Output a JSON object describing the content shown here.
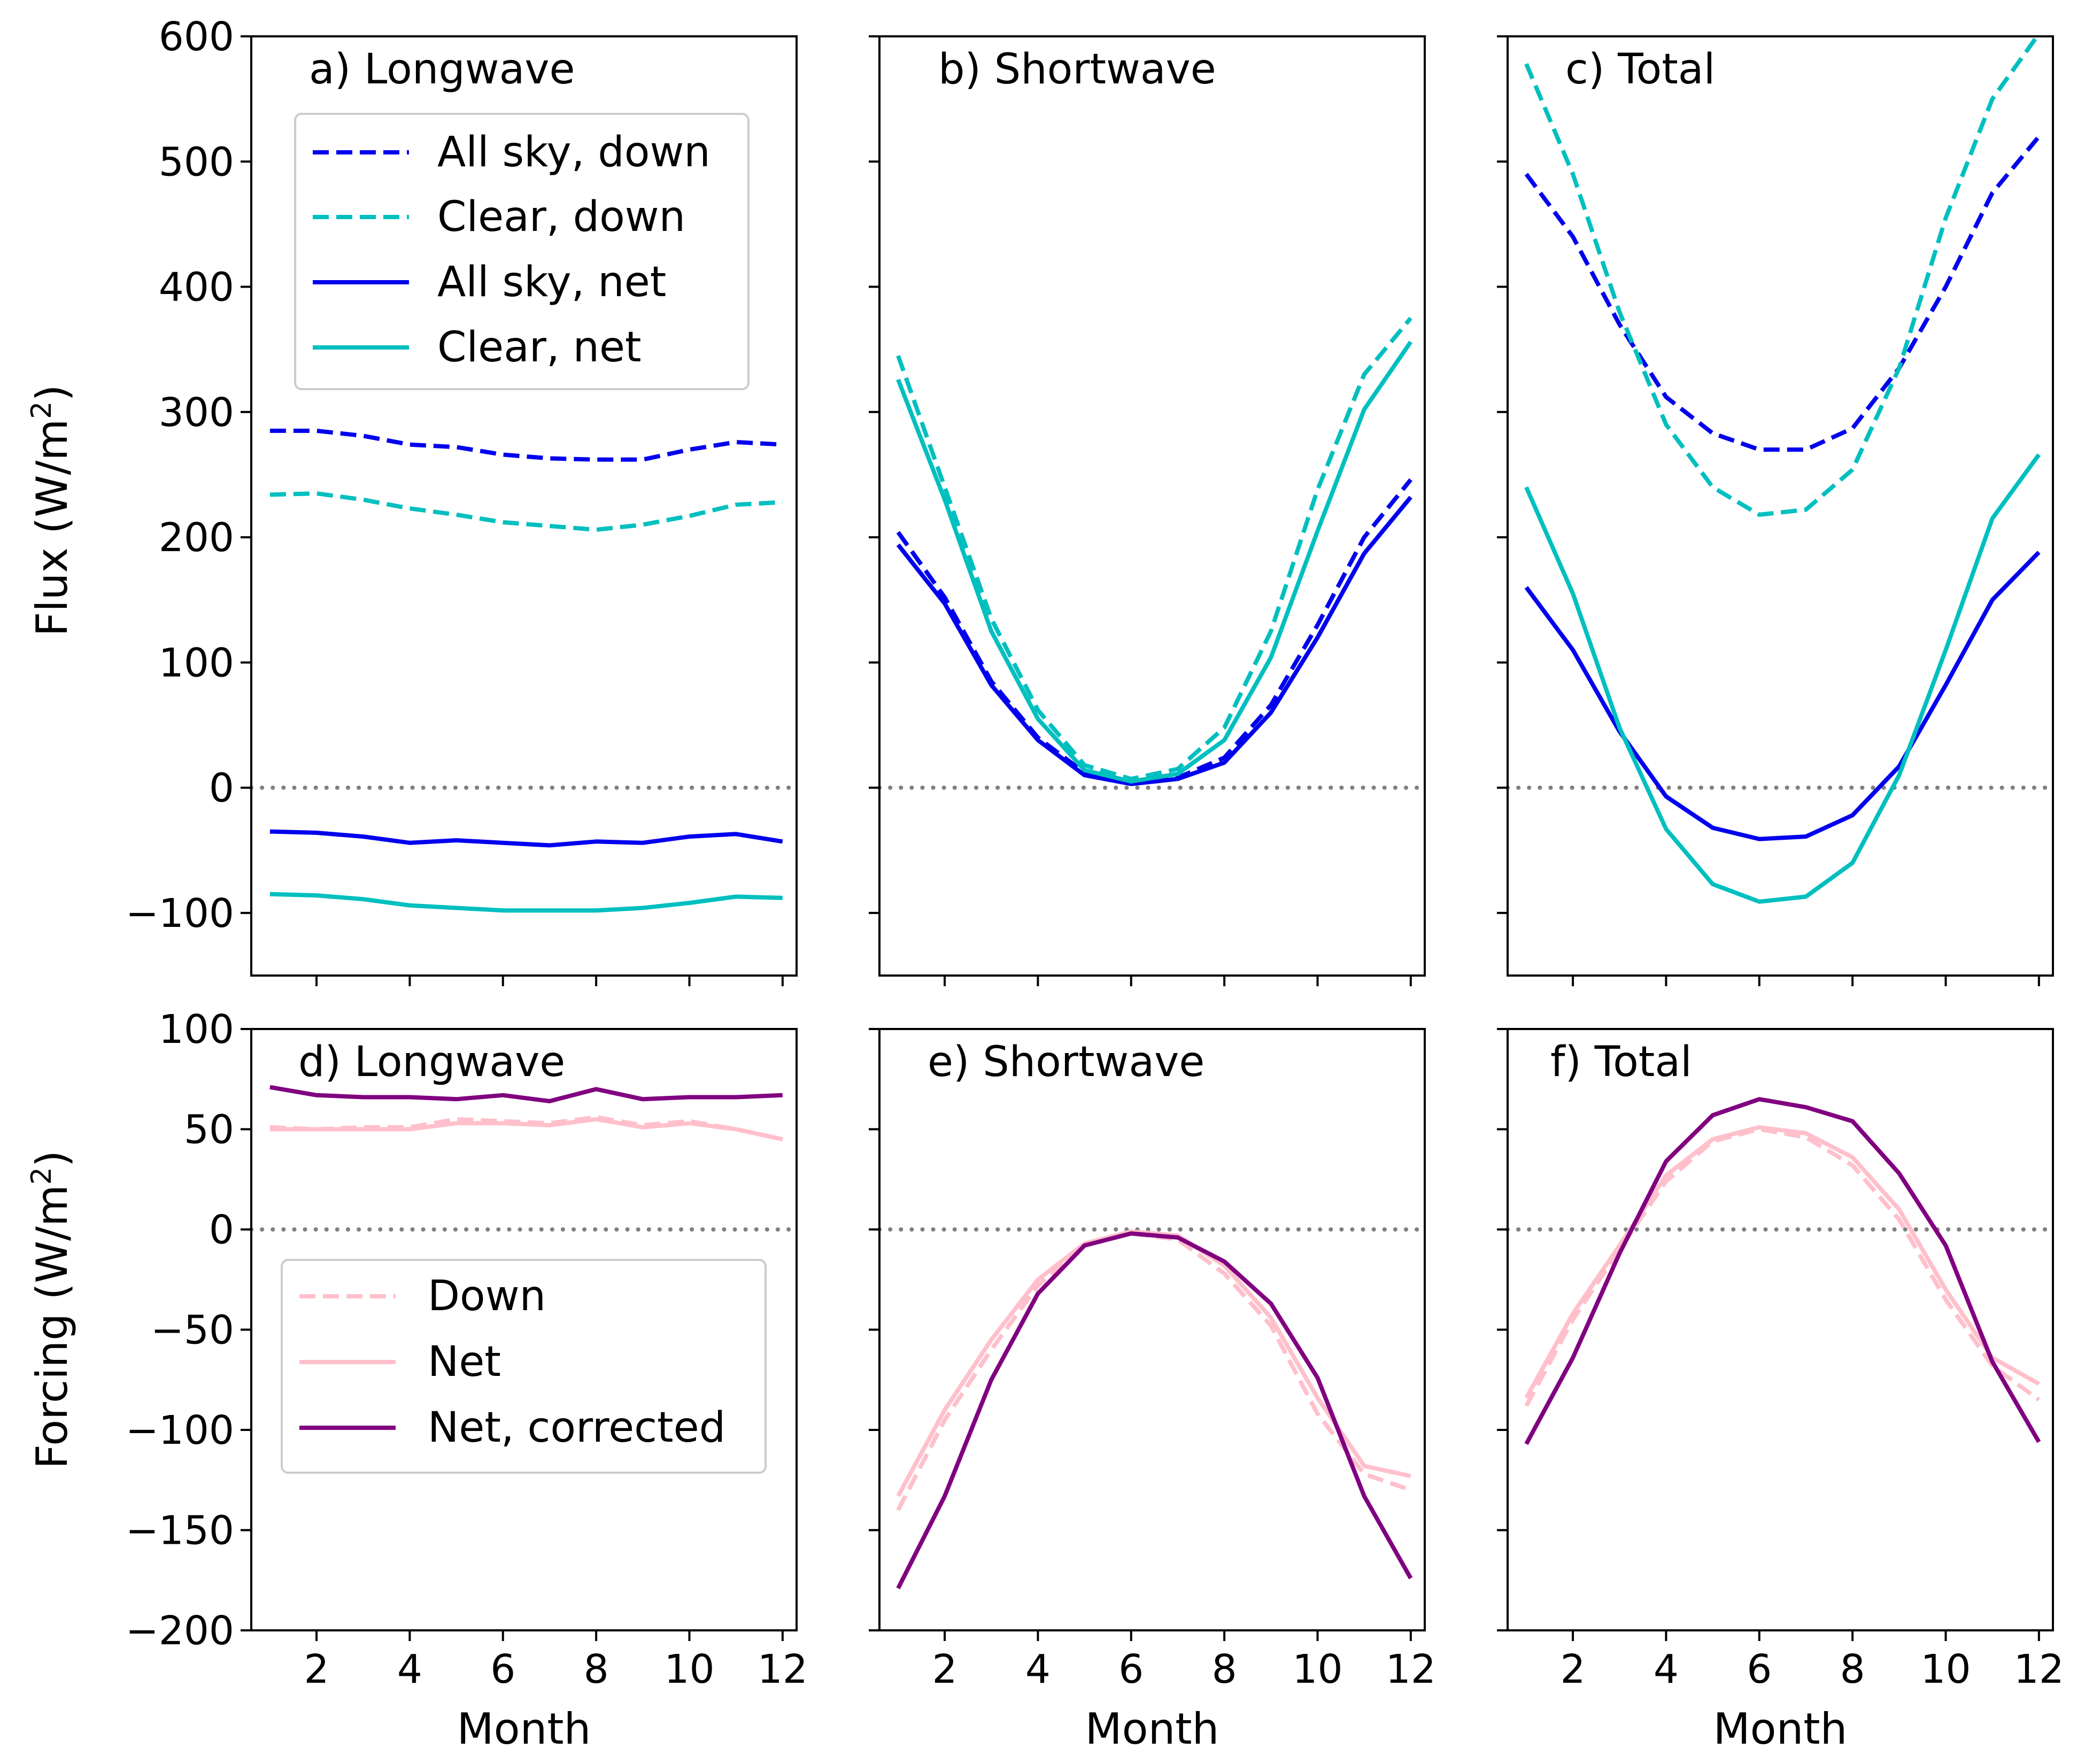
{
  "figure": {
    "xlabel": "Month"
  },
  "rows": [
    {
      "ylabel": "Flux (W/m",
      "ylabel_sup": "2",
      "ylabel_end": ")"
    },
    {
      "ylabel": "Forcing (W/m",
      "ylabel_sup": "2",
      "ylabel_end": ")"
    }
  ],
  "legends": {
    "top": [
      "All sky, down",
      "Clear, down",
      "All sky, net",
      "Clear, net"
    ],
    "bottom": [
      "Down",
      "Net",
      "Net, corrected"
    ]
  },
  "chart_data": [
    {
      "type": "line",
      "title": "a) Longwave",
      "xlabel": "",
      "ylabel": "Flux (W/m2)",
      "xlim": [
        0.6,
        12.3
      ],
      "ylim": [
        -150,
        600
      ],
      "xticks": [
        2,
        4,
        6,
        8,
        10,
        12
      ],
      "yticks": [
        -100,
        0,
        100,
        200,
        300,
        400,
        500,
        600
      ],
      "x": [
        1,
        2,
        3,
        4,
        5,
        6,
        7,
        8,
        9,
        10,
        11,
        12
      ],
      "reference_line": 0,
      "legend_position": "upper-left",
      "series": [
        {
          "name": "All sky, down",
          "color": "#0000ee",
          "style": "dashed",
          "values": [
            285,
            285,
            281,
            274,
            272,
            266,
            263,
            262,
            262,
            270,
            276,
            274
          ]
        },
        {
          "name": "Clear, down",
          "color": "#00bfbf",
          "style": "dashed",
          "values": [
            234,
            235,
            230,
            223,
            218,
            212,
            209,
            206,
            210,
            217,
            226,
            228
          ]
        },
        {
          "name": "All sky, net",
          "color": "#0000ee",
          "style": "solid",
          "values": [
            -35,
            -36,
            -39,
            -44,
            -42,
            -44,
            -46,
            -43,
            -44,
            -39,
            -37,
            -43
          ]
        },
        {
          "name": "Clear, net",
          "color": "#00bfbf",
          "style": "solid",
          "values": [
            -85,
            -86,
            -89,
            -94,
            -96,
            -98,
            -98,
            -98,
            -96,
            -92,
            -87,
            -88
          ]
        }
      ]
    },
    {
      "type": "line",
      "title": "b) Shortwave",
      "xlabel": "",
      "ylabel": "",
      "xlim": [
        0.6,
        12.3
      ],
      "ylim": [
        -150,
        600
      ],
      "xticks": [
        2,
        4,
        6,
        8,
        10,
        12
      ],
      "yticks": [
        -100,
        0,
        100,
        200,
        300,
        400,
        500,
        600
      ],
      "x": [
        1,
        2,
        3,
        4,
        5,
        6,
        7,
        8,
        9,
        10,
        11,
        12
      ],
      "reference_line": 0,
      "series": [
        {
          "name": "All sky, down",
          "color": "#0000ee",
          "style": "dashed",
          "values": [
            204,
            152,
            85,
            40,
            12,
            4,
            8,
            24,
            66,
            130,
            200,
            246
          ]
        },
        {
          "name": "Clear, down",
          "color": "#00bfbf",
          "style": "dashed",
          "values": [
            345,
            240,
            135,
            62,
            18,
            7,
            15,
            48,
            125,
            238,
            330,
            375
          ]
        },
        {
          "name": "All sky, net",
          "color": "#0000ee",
          "style": "solid",
          "values": [
            194,
            147,
            82,
            38,
            10,
            3,
            7,
            20,
            60,
            120,
            187,
            232
          ]
        },
        {
          "name": "Clear, net",
          "color": "#00bfbf",
          "style": "solid",
          "values": [
            326,
            230,
            125,
            55,
            14,
            5,
            11,
            38,
            104,
            205,
            302,
            356
          ]
        }
      ]
    },
    {
      "type": "line",
      "title": "c) Total",
      "xlabel": "",
      "ylabel": "",
      "xlim": [
        0.6,
        12.3
      ],
      "ylim": [
        -150,
        600
      ],
      "xticks": [
        2,
        4,
        6,
        8,
        10,
        12
      ],
      "yticks": [
        -100,
        0,
        100,
        200,
        300,
        400,
        500,
        600
      ],
      "x": [
        1,
        2,
        3,
        4,
        5,
        6,
        7,
        8,
        9,
        10,
        11,
        12
      ],
      "reference_line": 0,
      "series": [
        {
          "name": "All sky, down",
          "color": "#0000ee",
          "style": "dashed",
          "values": [
            490,
            440,
            370,
            312,
            283,
            270,
            270,
            287,
            335,
            400,
            475,
            520
          ]
        },
        {
          "name": "Clear, down",
          "color": "#00bfbf",
          "style": "dashed",
          "values": [
            578,
            490,
            380,
            290,
            240,
            218,
            222,
            254,
            335,
            455,
            550,
            602
          ]
        },
        {
          "name": "All sky, net",
          "color": "#0000ee",
          "style": "solid",
          "values": [
            160,
            110,
            45,
            -7,
            -32,
            -41,
            -39,
            -22,
            17,
            82,
            150,
            188
          ]
        },
        {
          "name": "Clear, net",
          "color": "#00bfbf",
          "style": "solid",
          "values": [
            240,
            155,
            48,
            -33,
            -77,
            -91,
            -87,
            -60,
            10,
            110,
            215,
            266
          ]
        }
      ]
    },
    {
      "type": "line",
      "title": "d) Longwave",
      "xlabel": "Month",
      "ylabel": "Forcing (W/m2)",
      "xlim": [
        0.6,
        12.3
      ],
      "ylim": [
        -200,
        100
      ],
      "xticks": [
        2,
        4,
        6,
        8,
        10,
        12
      ],
      "yticks": [
        -200,
        -150,
        -100,
        -50,
        0,
        50,
        100
      ],
      "x": [
        1,
        2,
        3,
        4,
        5,
        6,
        7,
        8,
        9,
        10,
        11,
        12
      ],
      "reference_line": 0,
      "legend_position": "lower-left",
      "series": [
        {
          "name": "Down",
          "color": "#ffc0cb",
          "style": "dashed",
          "values": [
            51,
            50,
            51,
            51,
            55,
            54,
            53,
            56,
            52,
            54,
            50,
            45
          ]
        },
        {
          "name": "Net",
          "color": "#ffc0cb",
          "style": "solid",
          "values": [
            50,
            50,
            50,
            50,
            53,
            53,
            52,
            55,
            51,
            53,
            50,
            45
          ]
        },
        {
          "name": "Net, corrected",
          "color": "#800080",
          "style": "solid",
          "values": [
            71,
            67,
            66,
            66,
            65,
            67,
            64,
            70,
            65,
            66,
            66,
            67
          ]
        }
      ]
    },
    {
      "type": "line",
      "title": "e) Shortwave",
      "xlabel": "Month",
      "ylabel": "",
      "xlim": [
        0.6,
        12.3
      ],
      "ylim": [
        -200,
        100
      ],
      "xticks": [
        2,
        4,
        6,
        8,
        10,
        12
      ],
      "yticks": [
        -200,
        -150,
        -100,
        -50,
        0,
        50,
        100
      ],
      "x": [
        1,
        2,
        3,
        4,
        5,
        6,
        7,
        8,
        9,
        10,
        11,
        12
      ],
      "reference_line": 0,
      "series": [
        {
          "name": "Down",
          "color": "#ffc0cb",
          "style": "dashed",
          "values": [
            -140,
            -95,
            -60,
            -28,
            -8,
            -2,
            -5,
            -22,
            -48,
            -92,
            -122,
            -130
          ]
        },
        {
          "name": "Net",
          "color": "#ffc0cb",
          "style": "solid",
          "values": [
            -133,
            -90,
            -55,
            -25,
            -7,
            -1,
            -3,
            -18,
            -44,
            -84,
            -118,
            -123
          ]
        },
        {
          "name": "Net, corrected",
          "color": "#800080",
          "style": "solid",
          "values": [
            -179,
            -133,
            -75,
            -32,
            -8,
            -2,
            -4,
            -16,
            -37,
            -74,
            -133,
            -174
          ]
        }
      ]
    },
    {
      "type": "line",
      "title": "f) Total",
      "xlabel": "Month",
      "ylabel": "",
      "xlim": [
        0.6,
        12.3
      ],
      "ylim": [
        -200,
        100
      ],
      "xticks": [
        2,
        4,
        6,
        8,
        10,
        12
      ],
      "yticks": [
        -200,
        -150,
        -100,
        -50,
        0,
        50,
        100
      ],
      "x": [
        1,
        2,
        3,
        4,
        5,
        6,
        7,
        8,
        9,
        10,
        11,
        12
      ],
      "reference_line": 0,
      "series": [
        {
          "name": "Down",
          "color": "#ffc0cb",
          "style": "dashed",
          "values": [
            -88,
            -45,
            -10,
            24,
            44,
            50,
            46,
            32,
            5,
            -35,
            -68,
            -85
          ]
        },
        {
          "name": "Net",
          "color": "#ffc0cb",
          "style": "solid",
          "values": [
            -84,
            -42,
            -8,
            27,
            45,
            51,
            48,
            36,
            10,
            -30,
            -64,
            -77
          ]
        },
        {
          "name": "Net, corrected",
          "color": "#800080",
          "style": "solid",
          "values": [
            -107,
            -64,
            -12,
            34,
            57,
            65,
            61,
            54,
            28,
            -8,
            -66,
            -106
          ]
        }
      ]
    }
  ]
}
